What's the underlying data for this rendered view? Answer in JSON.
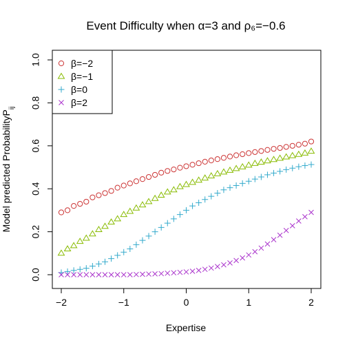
{
  "chart_data": {
    "type": "scatter",
    "title": "Event Difficulty when α=3 and ρ₆=−0.6",
    "xlabel": "Expertise",
    "ylabel": "Model predicted ProbabilityP",
    "ylabel_subscript": "ij",
    "xlim": [
      -2,
      2
    ],
    "ylim": [
      0,
      1
    ],
    "x_ticks": [
      -2,
      -1,
      0,
      1,
      2
    ],
    "x_tick_labels": [
      "−2",
      "−1",
      "0",
      "1",
      "2"
    ],
    "y_ticks": [
      0.0,
      0.2,
      0.4,
      0.6,
      0.8,
      1.0
    ],
    "y_tick_labels": [
      "0.0",
      "0.2",
      "0.4",
      "0.6",
      "0.8",
      "1.0"
    ],
    "grid": false,
    "legend_position": "top-left",
    "x": [
      -2.0,
      -1.9,
      -1.8,
      -1.7,
      -1.6,
      -1.5,
      -1.4,
      -1.3,
      -1.2,
      -1.1,
      -1.0,
      -0.9,
      -0.8,
      -0.7,
      -0.6,
      -0.5,
      -0.4,
      -0.3,
      -0.2,
      -0.1,
      0.0,
      0.1,
      0.2,
      0.3,
      0.4,
      0.5,
      0.6,
      0.7,
      0.8,
      0.9,
      1.0,
      1.1,
      1.2,
      1.3,
      1.4,
      1.5,
      1.6,
      1.7,
      1.8,
      1.9,
      2.0
    ],
    "series": [
      {
        "name": "β=−2",
        "marker": "circle",
        "color": "#cc3333",
        "values": [
          0.29,
          0.3,
          0.32,
          0.33,
          0.34,
          0.36,
          0.37,
          0.38,
          0.39,
          0.405,
          0.415,
          0.425,
          0.435,
          0.445,
          0.455,
          0.465,
          0.475,
          0.483,
          0.49,
          0.498,
          0.505,
          0.512,
          0.519,
          0.526,
          0.532,
          0.538,
          0.544,
          0.55,
          0.556,
          0.561,
          0.566,
          0.571,
          0.576,
          0.581,
          0.586,
          0.59,
          0.595,
          0.6,
          0.605,
          0.61,
          0.62
        ]
      },
      {
        "name": "β=−1",
        "marker": "triangle",
        "color": "#88bb00",
        "values": [
          0.1,
          0.12,
          0.135,
          0.155,
          0.17,
          0.19,
          0.21,
          0.225,
          0.245,
          0.26,
          0.28,
          0.295,
          0.31,
          0.325,
          0.34,
          0.355,
          0.37,
          0.385,
          0.395,
          0.41,
          0.42,
          0.43,
          0.44,
          0.45,
          0.46,
          0.47,
          0.478,
          0.486,
          0.494,
          0.502,
          0.51,
          0.518,
          0.524,
          0.53,
          0.536,
          0.542,
          0.548,
          0.554,
          0.56,
          0.566,
          0.575
        ]
      },
      {
        "name": "β=0",
        "marker": "plus",
        "color": "#33aacc",
        "values": [
          0.01,
          0.015,
          0.02,
          0.025,
          0.03,
          0.04,
          0.05,
          0.06,
          0.075,
          0.09,
          0.105,
          0.12,
          0.14,
          0.16,
          0.18,
          0.2,
          0.22,
          0.24,
          0.26,
          0.28,
          0.3,
          0.32,
          0.335,
          0.35,
          0.365,
          0.38,
          0.395,
          0.405,
          0.415,
          0.425,
          0.435,
          0.445,
          0.455,
          0.465,
          0.473,
          0.481,
          0.489,
          0.496,
          0.503,
          0.508,
          0.513
        ]
      },
      {
        "name": "β=2",
        "marker": "x",
        "color": "#aa33cc",
        "values": [
          0.0,
          0.0,
          0.0,
          0.0,
          0.0,
          0.0,
          0.0,
          0.0,
          0.0,
          0.0,
          0.0,
          0.0,
          0.001,
          0.002,
          0.003,
          0.004,
          0.005,
          0.007,
          0.009,
          0.011,
          0.013,
          0.016,
          0.02,
          0.025,
          0.031,
          0.038,
          0.046,
          0.055,
          0.066,
          0.078,
          0.092,
          0.107,
          0.124,
          0.143,
          0.163,
          0.184,
          0.206,
          0.228,
          0.25,
          0.27,
          0.29
        ]
      }
    ]
  }
}
